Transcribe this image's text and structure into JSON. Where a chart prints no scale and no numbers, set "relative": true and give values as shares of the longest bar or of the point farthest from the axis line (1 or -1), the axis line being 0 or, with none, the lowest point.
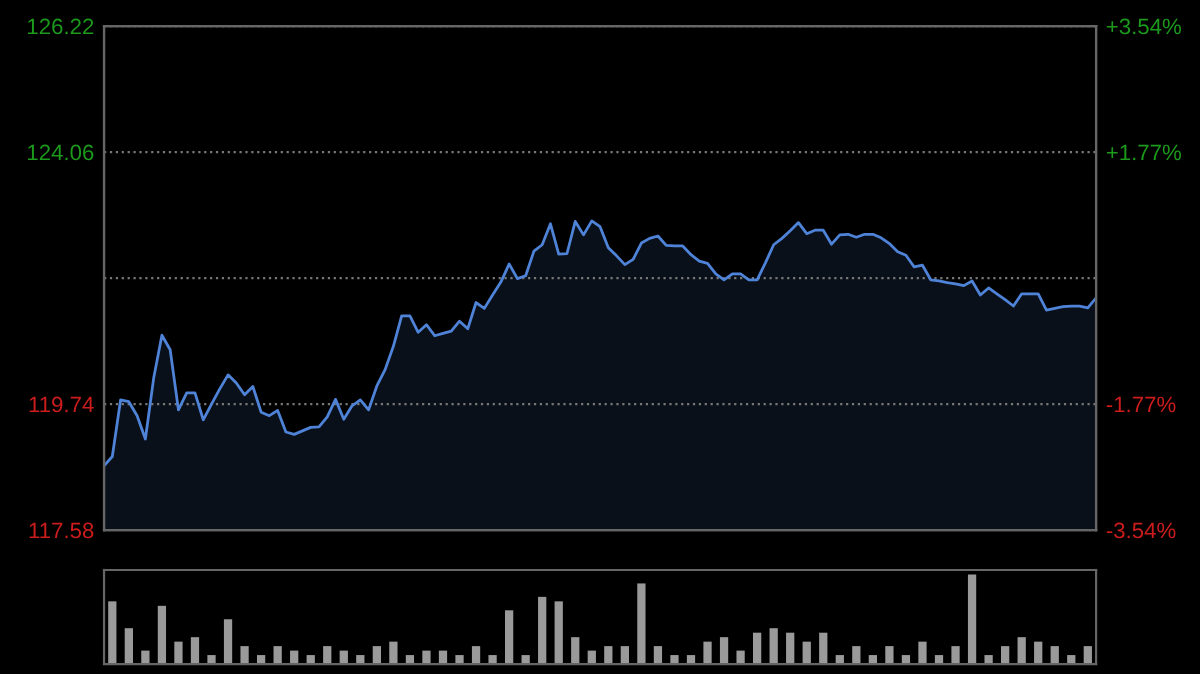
{
  "chart_data": [
    {
      "type": "area",
      "categories": [
        null,
        null,
        null,
        null,
        null,
        null,
        null,
        null,
        null,
        null,
        null,
        null,
        null,
        null,
        null,
        null,
        null,
        null,
        null,
        null,
        null,
        null,
        null,
        null,
        null,
        null,
        null,
        null,
        null,
        null,
        null,
        null,
        null,
        null,
        null,
        null,
        null,
        null,
        null,
        null,
        null,
        null,
        null,
        null,
        null,
        null,
        null,
        null,
        null,
        null,
        null,
        null,
        null,
        null,
        null,
        null,
        null,
        null,
        null,
        null,
        null,
        null,
        null,
        null,
        null,
        null,
        null,
        null,
        null,
        null,
        null,
        null,
        null,
        null,
        null,
        null,
        null,
        null,
        null,
        null,
        null,
        null,
        null,
        null,
        null,
        null,
        null,
        null,
        null,
        null,
        null,
        null,
        null,
        null,
        null,
        null,
        null,
        null,
        null,
        null,
        null,
        null,
        null,
        null,
        null,
        null,
        null,
        null,
        null,
        null,
        null,
        null,
        null,
        null,
        null,
        null,
        null,
        null,
        null,
        null,
        null
      ],
      "series": [
        {
          "color": "#4f83d8",
          "values": [
            118.68,
            118.84,
            119.81,
            119.78,
            119.54,
            119.14,
            120.18,
            120.92,
            120.67,
            119.64,
            119.93,
            119.93,
            119.47,
            119.74,
            120.0,
            120.24,
            120.1,
            119.9,
            120.04,
            119.6,
            119.54,
            119.63,
            119.26,
            119.22,
            119.28,
            119.34,
            119.35,
            119.52,
            119.82,
            119.48,
            119.71,
            119.81,
            119.64,
            120.05,
            120.33,
            120.73,
            121.25,
            121.25,
            120.97,
            121.1,
            120.91,
            120.95,
            120.99,
            121.16,
            121.03,
            121.48,
            121.38,
            121.61,
            121.83,
            122.14,
            121.89,
            121.94,
            122.36,
            122.47,
            122.83,
            122.31,
            122.32,
            122.87,
            122.64,
            122.88,
            122.78,
            122.42,
            122.28,
            122.13,
            122.22,
            122.5,
            122.58,
            122.62,
            122.46,
            122.45,
            122.45,
            122.3,
            122.19,
            122.15,
            121.97,
            121.87,
            121.97,
            121.97,
            121.87,
            121.87,
            122.16,
            122.47,
            122.58,
            122.71,
            122.85,
            122.66,
            122.72,
            122.72,
            122.48,
            122.64,
            122.65,
            122.6,
            122.65,
            122.65,
            122.59,
            122.49,
            122.35,
            122.29,
            122.09,
            122.12,
            121.87,
            121.85,
            121.82,
            121.8,
            121.77,
            121.85,
            121.61,
            121.73,
            121.63,
            121.53,
            121.42,
            121.63,
            121.63,
            121.63,
            121.35,
            121.38,
            121.41,
            121.42,
            121.42,
            121.39,
            121.56
          ]
        }
      ],
      "ylim": [
        117.58,
        126.22
      ],
      "yticks": [
        117.58,
        119.74,
        {
          "value": 121.9,
          "label": null
        },
        124.06,
        126.22
      ],
      "y2lim": [
        -3.54,
        3.54
      ],
      "y2ticks": [
        {
          "value": -3.54,
          "label": "-3.54%"
        },
        {
          "value": -1.77,
          "label": "-1.77%"
        },
        {
          "value": 1.77,
          "label": "+1.77%"
        },
        {
          "value": 3.54,
          "label": "+3.54%"
        }
      ],
      "grid": "y",
      "tick_labels": "y"
    },
    {
      "type": "bar",
      "relative": true,
      "tick_labels": false,
      "categories": [
        null,
        null,
        null,
        null,
        null,
        null,
        null,
        null,
        null,
        null,
        null,
        null,
        null,
        null,
        null,
        null,
        null,
        null,
        null,
        null,
        null,
        null,
        null,
        null,
        null,
        null,
        null,
        null,
        null,
        null,
        null,
        null,
        null,
        null,
        null,
        null,
        null,
        null,
        null,
        null,
        null,
        null,
        null,
        null,
        null,
        null,
        null,
        null,
        null,
        null,
        null,
        null,
        null,
        null,
        null,
        null,
        null,
        null,
        null,
        null
      ],
      "values": [
        0.7,
        0.4,
        0.15,
        0.65,
        0.25,
        0.3,
        0.1,
        0.5,
        0.2,
        0.1,
        0.2,
        0.15,
        0.1,
        0.2,
        0.15,
        0.1,
        0.2,
        0.25,
        0.1,
        0.15,
        0.15,
        0.1,
        0.2,
        0.1,
        0.6,
        0.1,
        0.75,
        0.7,
        0.3,
        0.15,
        0.2,
        0.2,
        0.9,
        0.2,
        0.1,
        0.1,
        0.25,
        0.3,
        0.15,
        0.35,
        0.4,
        0.35,
        0.25,
        0.35,
        0.1,
        0.2,
        0.1,
        0.2,
        0.1,
        0.25,
        0.1,
        0.2,
        1.0,
        0.1,
        0.2,
        0.3,
        0.25,
        0.2,
        0.1,
        0.2
      ],
      "color": "#9a9a9a"
    }
  ]
}
